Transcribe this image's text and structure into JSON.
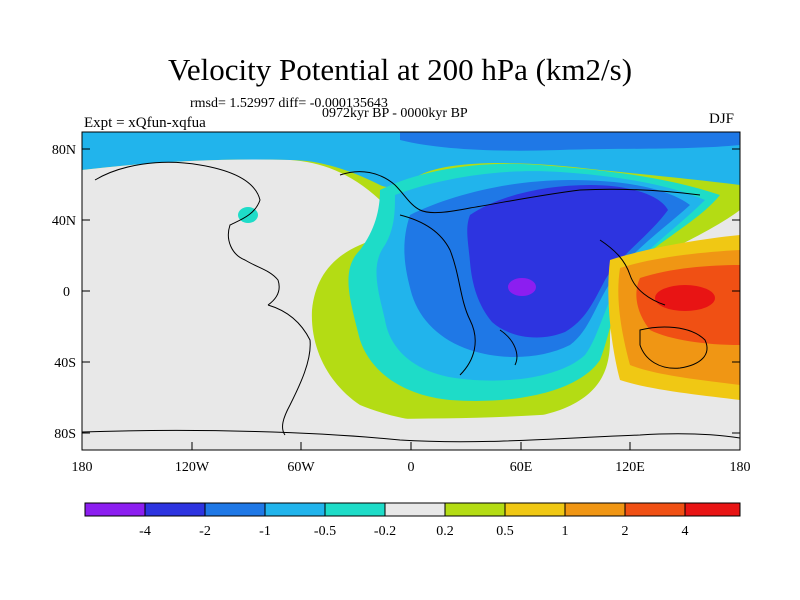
{
  "header": {
    "title": "Velocity Potential at 200 hPa (km2/s)",
    "stats": "rmsd= 1.52997 diff= -0.000135643",
    "period": "0972kyr BP - 0000kyr BP",
    "experiment": "Expt = xQfun-xqfua",
    "season": "DJF"
  },
  "axes": {
    "lat_ticks": [
      "80N",
      "40N",
      "0",
      "40S",
      "80S"
    ],
    "lon_ticks": [
      "180",
      "120W",
      "60W",
      "0",
      "60E",
      "120E",
      "180"
    ]
  },
  "colorbar": {
    "labels": [
      "-4",
      "-2",
      "-1",
      "-0.5",
      "-0.2",
      "0.2",
      "0.5",
      "1",
      "2",
      "4"
    ],
    "colors": [
      "#8c1ef0",
      "#2d34e0",
      "#1f78e6",
      "#21b4ec",
      "#1edcc8",
      "#e8e8e8",
      "#b4dc14",
      "#f0c814",
      "#f09614",
      "#f05014",
      "#e81414"
    ]
  },
  "palette": {
    "neg4": "#8c1ef0",
    "neg2": "#2d34e0",
    "neg1": "#1f78e6",
    "neg05": "#21b4ec",
    "neg02": "#1edcc8",
    "zero": "#e8e8e8",
    "pos02": "#b4dc14",
    "pos05": "#f0c814",
    "pos1": "#f09614",
    "pos2": "#f05014",
    "pos4": "#e81414"
  }
}
